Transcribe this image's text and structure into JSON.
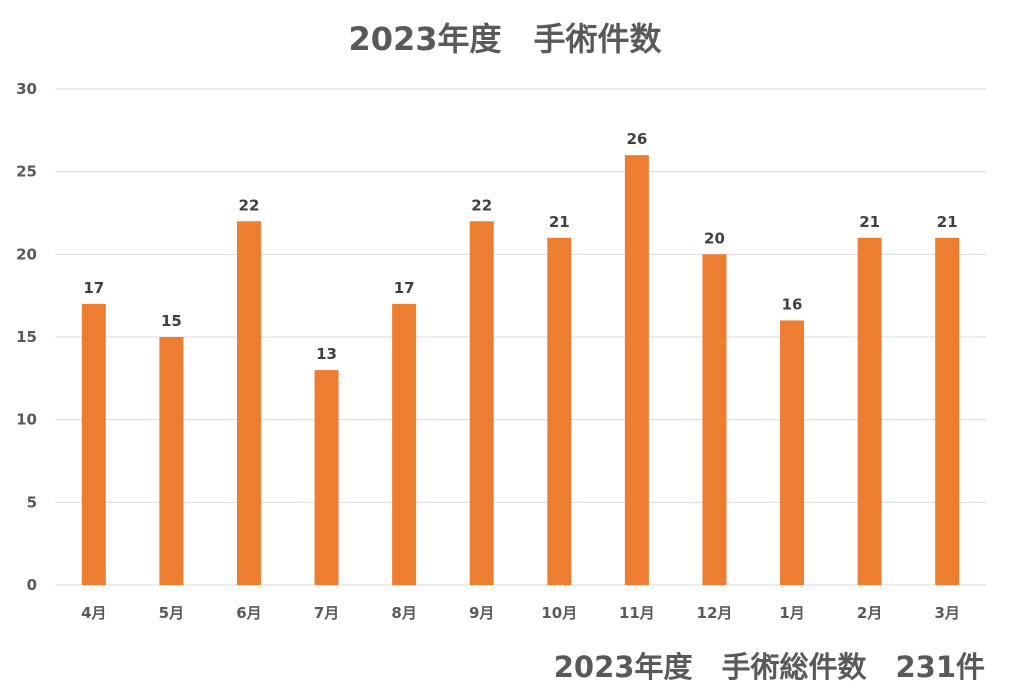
{
  "chart_data": {
    "type": "bar",
    "title": "2023年度　手術件数",
    "categories": [
      "4月",
      "5月",
      "6月",
      "7月",
      "8月",
      "9月",
      "10月",
      "11月",
      "12月",
      "1月",
      "2月",
      "3月"
    ],
    "series": [
      {
        "values": [
          17,
          15,
          22,
          13,
          17,
          22,
          21,
          26,
          20,
          16,
          21,
          21
        ]
      }
    ],
    "ylim": [
      0,
      30
    ],
    "yticks": [
      0,
      5,
      10,
      15,
      20,
      25,
      30
    ],
    "grid": true,
    "data_labels": true,
    "bar_color": "#ED7D31",
    "grid_color": "#D9D9D9",
    "xlabel": "",
    "ylabel": ""
  },
  "footer": {
    "total_text": "2023年度　手術総件数　231件"
  }
}
